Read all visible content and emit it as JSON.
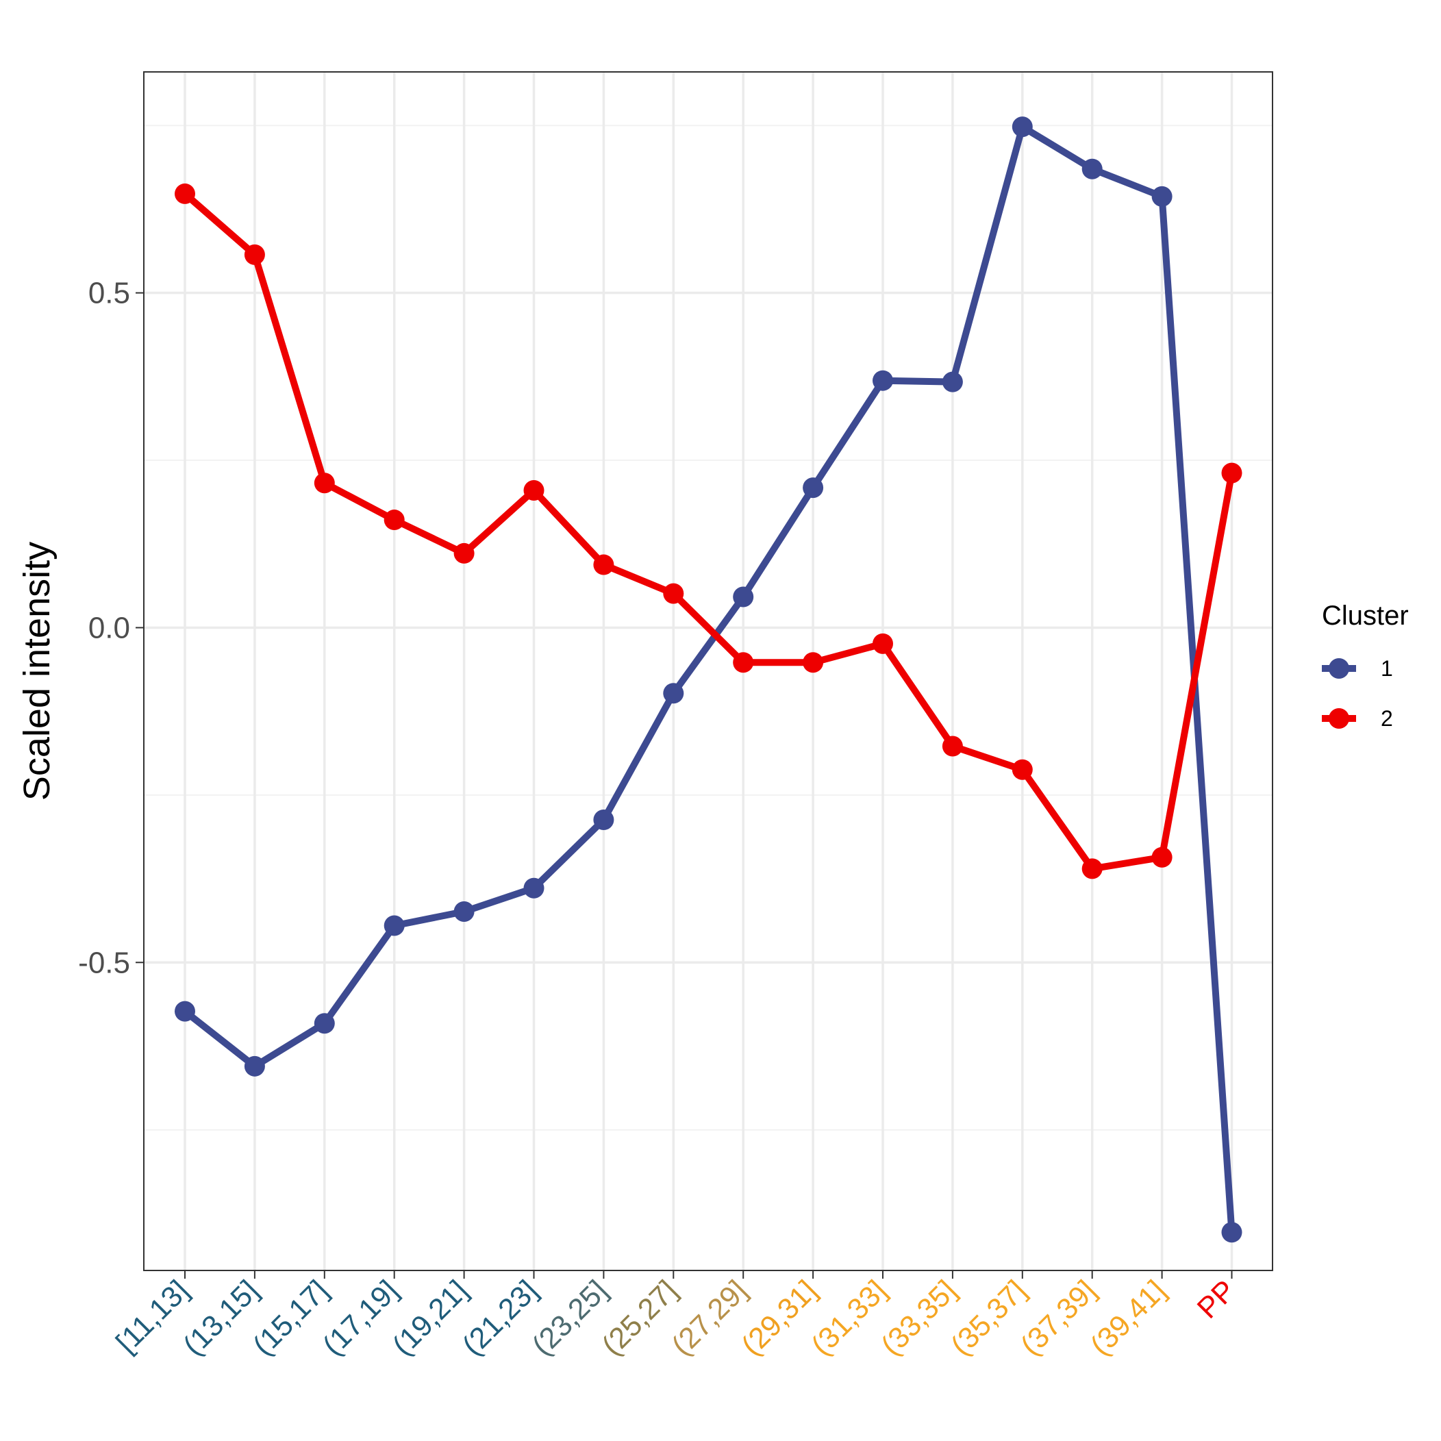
{
  "chart_data": {
    "type": "line",
    "title": "",
    "xlabel": "",
    "ylabel": "Scaled intensity",
    "categories": [
      "[11,13]",
      "(13,15]",
      "(15,17]",
      "(17,19]",
      "(19,21]",
      "(21,23]",
      "(23,25]",
      "(25,27]",
      "(27,29]",
      "(29,31]",
      "(31,33]",
      "(33,35]",
      "(35,37]",
      "(37,39]",
      "(39,41]",
      "PP"
    ],
    "category_colors": [
      "#1f5c7a",
      "#1f5c7a",
      "#1f5c7a",
      "#1f5c7a",
      "#1f5c7a",
      "#1f5c7a",
      "#4d6b70",
      "#8f7f4a",
      "#b8914a",
      "#f0a020",
      "#f5a623",
      "#f5a623",
      "#f5a623",
      "#f5a623",
      "#f5a623",
      "#ee0000"
    ],
    "ylim": [
      -0.96,
      0.83
    ],
    "yticks": [
      -0.5,
      0.0,
      0.5
    ],
    "ytick_labels": [
      "-0.5",
      "0.0",
      "0.5"
    ],
    "grid": true,
    "legend": {
      "title": "Cluster",
      "position": "right"
    },
    "series": [
      {
        "name": "1",
        "color": "#3d4a91",
        "values": [
          -0.573,
          -0.655,
          -0.591,
          -0.445,
          -0.424,
          -0.389,
          -0.287,
          -0.098,
          0.046,
          0.209,
          0.369,
          0.367,
          0.748,
          0.685,
          0.644,
          -0.903
        ]
      },
      {
        "name": "2",
        "color": "#ee0000",
        "values": [
          0.648,
          0.557,
          0.216,
          0.161,
          0.111,
          0.205,
          0.094,
          0.051,
          -0.052,
          -0.052,
          -0.024,
          -0.177,
          -0.212,
          -0.36,
          -0.343,
          0.231
        ]
      }
    ]
  }
}
